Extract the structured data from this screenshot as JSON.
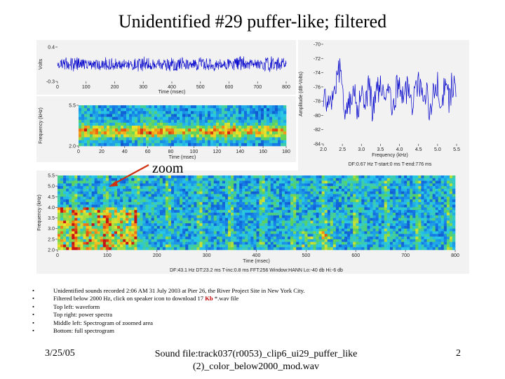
{
  "slide": {
    "title": "Unidentified #29 puffer-like; filtered",
    "zoom_label": "zoom",
    "bullets": [
      {
        "pre": "Unidentified sounds recorded 2:06 AM 31 July 2003 at Pier 26, the River Project Site in New York City.",
        "highlight": "",
        "post": ""
      },
      {
        "pre": "Filtered below 2000 Hz, click on speaker icon to download 17 ",
        "highlight": "Kb",
        "post": " *.wav file"
      },
      {
        "pre": "Top left: waveform",
        "highlight": "",
        "post": ""
      },
      {
        "pre": "Top right: power spectra",
        "highlight": "",
        "post": ""
      },
      {
        "pre": "Middle left: Spectrogram of zoomed area",
        "highlight": "",
        "post": ""
      },
      {
        "pre": "Bottom: full spectrogram",
        "highlight": "",
        "post": ""
      }
    ],
    "footer": {
      "date": "3/25/05",
      "file_line1": "Sound file:track037(r0053)_clip6_ui29_puffer_like",
      "file_line2": "(2)_color_below2000_mod.wav",
      "page": "2"
    }
  },
  "chart_data": [
    {
      "type": "line",
      "name": "waveform",
      "xlabel": "Time (msec)",
      "ylabel": "Volts",
      "x_ticks": [
        0,
        100,
        200,
        300,
        400,
        500,
        600,
        700,
        800
      ],
      "y_ticks": [
        0.4,
        -0.3
      ],
      "xlim": [
        0,
        800
      ],
      "ylim": [
        -0.3,
        0.4
      ],
      "signal": "dense oscillating waveform, amplitude about +/-0.1 V",
      "color": "#0000cc"
    },
    {
      "type": "heatmap",
      "name": "zoomed spectrogram",
      "xlabel": "Time (msec)",
      "ylabel": "Frequency (kHz)",
      "x_ticks": [
        0,
        20,
        40,
        60,
        80,
        100,
        120,
        140,
        160,
        180
      ],
      "y_ticks": [
        5.5,
        2.0
      ],
      "xlim": [
        0,
        180
      ],
      "ylim": [
        2.0,
        5.5
      ]
    },
    {
      "type": "line",
      "name": "power spectrum",
      "xlabel": "Frequency (kHz)",
      "ylabel": "Amplitude (dB-Volts)",
      "x_ticks": [
        2.0,
        2.5,
        3.0,
        3.5,
        4.0,
        4.5,
        5.0,
        5.5
      ],
      "y_ticks": [
        -70,
        -72,
        -74,
        -76,
        -78,
        -80,
        -82,
        -84
      ],
      "xlim": [
        2.0,
        5.5
      ],
      "ylim": [
        -84,
        -70
      ],
      "info": "DF:0.67 Hz    T-start:0 ms    T-end:776 ms",
      "points": [
        [
          2.0,
          -78.5
        ],
        [
          2.1,
          -77
        ],
        [
          2.2,
          -79
        ],
        [
          2.3,
          -76
        ],
        [
          2.4,
          -73
        ],
        [
          2.5,
          -76.5
        ],
        [
          2.6,
          -80
        ],
        [
          2.7,
          -78
        ],
        [
          2.8,
          -75
        ],
        [
          2.9,
          -79
        ],
        [
          3.0,
          -76
        ],
        [
          3.1,
          -78.5
        ],
        [
          3.2,
          -75.5
        ],
        [
          3.3,
          -79.5
        ],
        [
          3.4,
          -77
        ],
        [
          3.5,
          -75
        ],
        [
          3.6,
          -78
        ],
        [
          3.7,
          -76
        ],
        [
          3.8,
          -79
        ],
        [
          3.9,
          -77
        ],
        [
          4.0,
          -75.5
        ],
        [
          4.1,
          -78
        ],
        [
          4.2,
          -76.5
        ],
        [
          4.3,
          -79
        ],
        [
          4.4,
          -77.5
        ],
        [
          4.5,
          -75
        ],
        [
          4.6,
          -78
        ],
        [
          4.7,
          -76
        ],
        [
          4.8,
          -79.5
        ],
        [
          4.9,
          -77
        ],
        [
          5.0,
          -75
        ],
        [
          5.1,
          -78
        ],
        [
          5.2,
          -76
        ],
        [
          5.3,
          -77.5
        ],
        [
          5.4,
          -75.5
        ],
        [
          5.5,
          -76.5
        ]
      ],
      "color": "#0000cc"
    },
    {
      "type": "heatmap",
      "name": "full spectrogram",
      "xlabel": "Time (msec)",
      "ylabel": "Frequency (kHz)",
      "x_ticks": [
        0,
        100,
        200,
        300,
        400,
        500,
        600,
        700,
        800
      ],
      "y_ticks": [
        5.5,
        5.0,
        4.5,
        4.0,
        3.5,
        3.0,
        2.5,
        2.0
      ],
      "xlim": [
        0,
        800
      ],
      "ylim": [
        2.0,
        5.5
      ],
      "info": "DF:43.1 Hz    DT:23.2 ms    T-inc:0.8 ms    FFT:256    Window:HANN    Lo:-40 db    Hi:-6 db"
    }
  ]
}
